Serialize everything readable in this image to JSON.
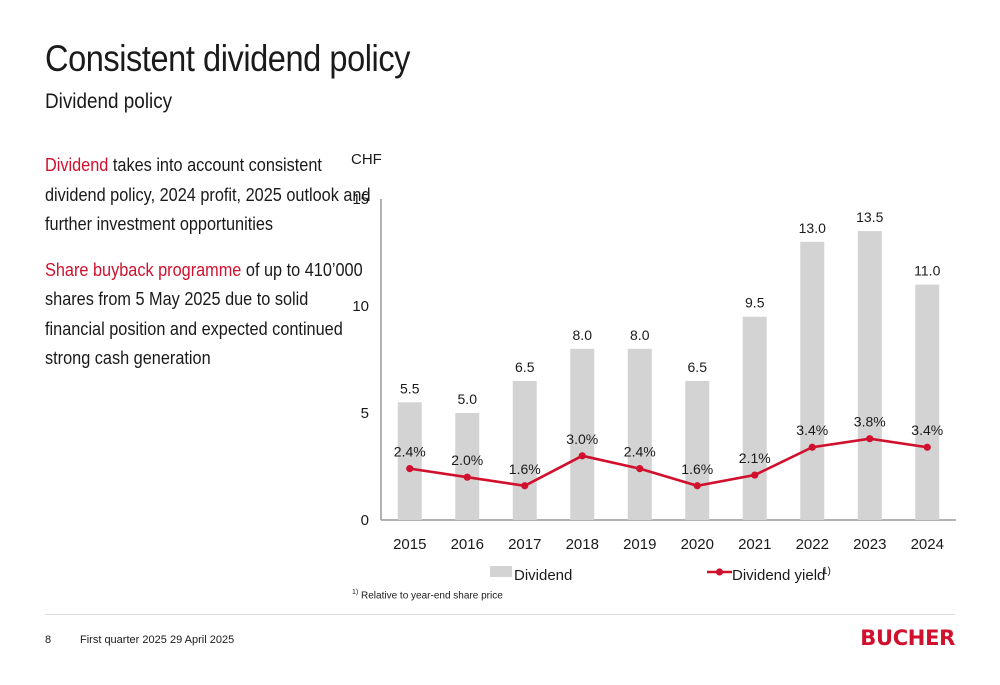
{
  "header": {
    "title": "Consistent dividend policy",
    "subtitle": "Dividend policy"
  },
  "bullets": [
    {
      "highlight": "Dividend",
      "text": " takes into account consistent dividend policy, 2024 profit, 2025 outlook and further investment opportunities"
    },
    {
      "highlight": "Share buyback programme",
      "text": " of up to 410’000 shares from 5 May 2025 due to solid financial position and expected continued strong cash generation"
    }
  ],
  "chart_data": {
    "type": "bar",
    "unit_label": "CHF",
    "categories": [
      "2015",
      "2016",
      "2017",
      "2018",
      "2019",
      "2020",
      "2021",
      "2022",
      "2023",
      "2024"
    ],
    "series": [
      {
        "name": "Dividend",
        "type": "bar",
        "color": "#d3d3d3",
        "values": [
          5.5,
          5.0,
          6.5,
          8.0,
          8.0,
          6.5,
          9.5,
          13.0,
          13.5,
          11.0
        ],
        "labels": [
          "5.5",
          "5.0",
          "6.5",
          "8.0",
          "8.0",
          "6.5",
          "9.5",
          "13.0",
          "13.5",
          "11.0"
        ]
      },
      {
        "name": "Dividend yield",
        "name_sup": "1)",
        "type": "line",
        "color": "#d0102c",
        "values": [
          2.4,
          2.0,
          1.6,
          3.0,
          2.4,
          1.6,
          2.1,
          3.4,
          3.8,
          3.4
        ],
        "labels": [
          "2.4%",
          "2.0%",
          "1.6%",
          "3.0%",
          "2.4%",
          "1.6%",
          "2.1%",
          "3.4%",
          "3.8%",
          "3.4%"
        ]
      }
    ],
    "ylim": [
      0,
      15
    ],
    "yticks": [
      "0",
      "5",
      "10",
      "15"
    ],
    "legend_position": "bottom",
    "footnote_mark": "1)",
    "footnote": "Relative to year-end share price"
  },
  "footer": {
    "page": "8",
    "period": "First quarter 2025",
    "date": "29 April 2025",
    "logo": "BUCHER"
  }
}
